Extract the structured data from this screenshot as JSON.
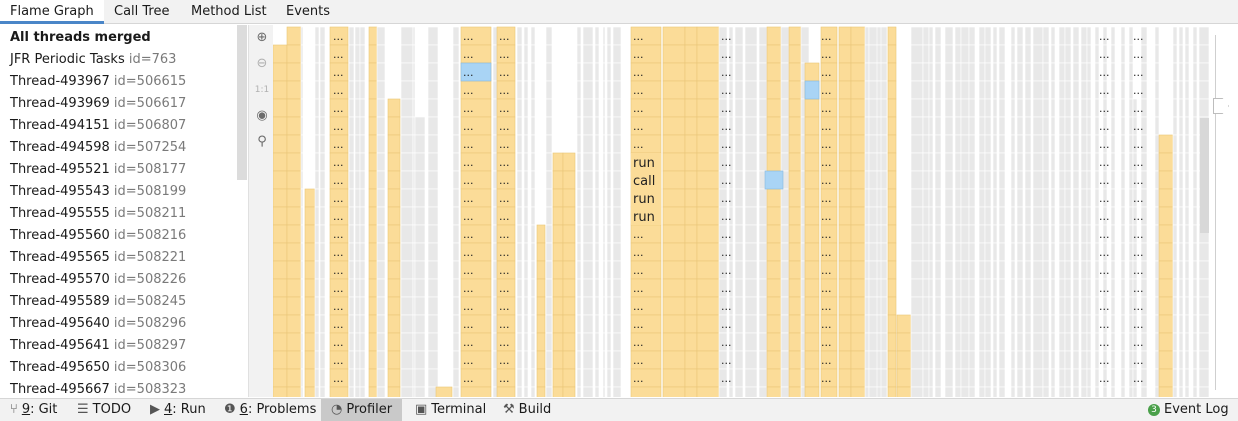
{
  "tabs": [
    {
      "label": "Flame Graph",
      "active": true
    },
    {
      "label": "Call Tree",
      "active": false
    },
    {
      "label": "Method List",
      "active": false
    },
    {
      "label": "Events",
      "active": false
    }
  ],
  "threads": [
    {
      "name": "All threads merged",
      "id": "",
      "bold": true
    },
    {
      "name": "JFR Periodic Tasks",
      "id": "id=763"
    },
    {
      "name": "Thread-493967",
      "id": "id=506615"
    },
    {
      "name": "Thread-493969",
      "id": "id=506617"
    },
    {
      "name": "Thread-494151",
      "id": "id=506807"
    },
    {
      "name": "Thread-494598",
      "id": "id=507254"
    },
    {
      "name": "Thread-495521",
      "id": "id=508177"
    },
    {
      "name": "Thread-495543",
      "id": "id=508199"
    },
    {
      "name": "Thread-495555",
      "id": "id=508211"
    },
    {
      "name": "Thread-495560",
      "id": "id=508216"
    },
    {
      "name": "Thread-495565",
      "id": "id=508221"
    },
    {
      "name": "Thread-495570",
      "id": "id=508226"
    },
    {
      "name": "Thread-495589",
      "id": "id=508245"
    },
    {
      "name": "Thread-495640",
      "id": "id=508296"
    },
    {
      "name": "Thread-495641",
      "id": "id=508297"
    },
    {
      "name": "Thread-495650",
      "id": "id=508306"
    },
    {
      "name": "Thread-495667",
      "id": "id=508323"
    }
  ],
  "tools": [
    {
      "icon": "zoom-in-icon",
      "glyph": "⊕"
    },
    {
      "icon": "zoom-out-icon",
      "glyph": "⊖"
    },
    {
      "icon": "actual-size-icon",
      "glyph": "1:1"
    },
    {
      "icon": "eye-icon",
      "glyph": "◉"
    },
    {
      "icon": "search-icon",
      "glyph": "⚲"
    }
  ],
  "flame": {
    "frame_labels": [
      "...",
      "run",
      "call",
      "run",
      "run"
    ],
    "colors": {
      "frame": "#fbdc98",
      "frame_border": "#e9c679",
      "highlight": "#a9d4f5",
      "idle": "#e8e8e8"
    }
  },
  "statusbar": {
    "items": [
      {
        "icon": "git-icon",
        "glyph": "⑂",
        "key": "9",
        "label": ": Git"
      },
      {
        "icon": "todo-icon",
        "glyph": "☰",
        "key": "",
        "label": "TODO"
      },
      {
        "icon": "run-icon",
        "glyph": "▶",
        "key": "4",
        "label": ": Run"
      },
      {
        "icon": "problems-icon",
        "glyph": "❶",
        "key": "6",
        "label": ": Problems"
      },
      {
        "icon": "profiler-icon",
        "glyph": "◔",
        "key": "",
        "label": "Profiler"
      },
      {
        "icon": "terminal-icon",
        "glyph": "▣",
        "key": "",
        "label": "Terminal"
      },
      {
        "icon": "build-icon",
        "glyph": "⚒",
        "key": "",
        "label": "Build"
      }
    ],
    "event_log": {
      "badge": "3",
      "label": "Event Log"
    }
  }
}
